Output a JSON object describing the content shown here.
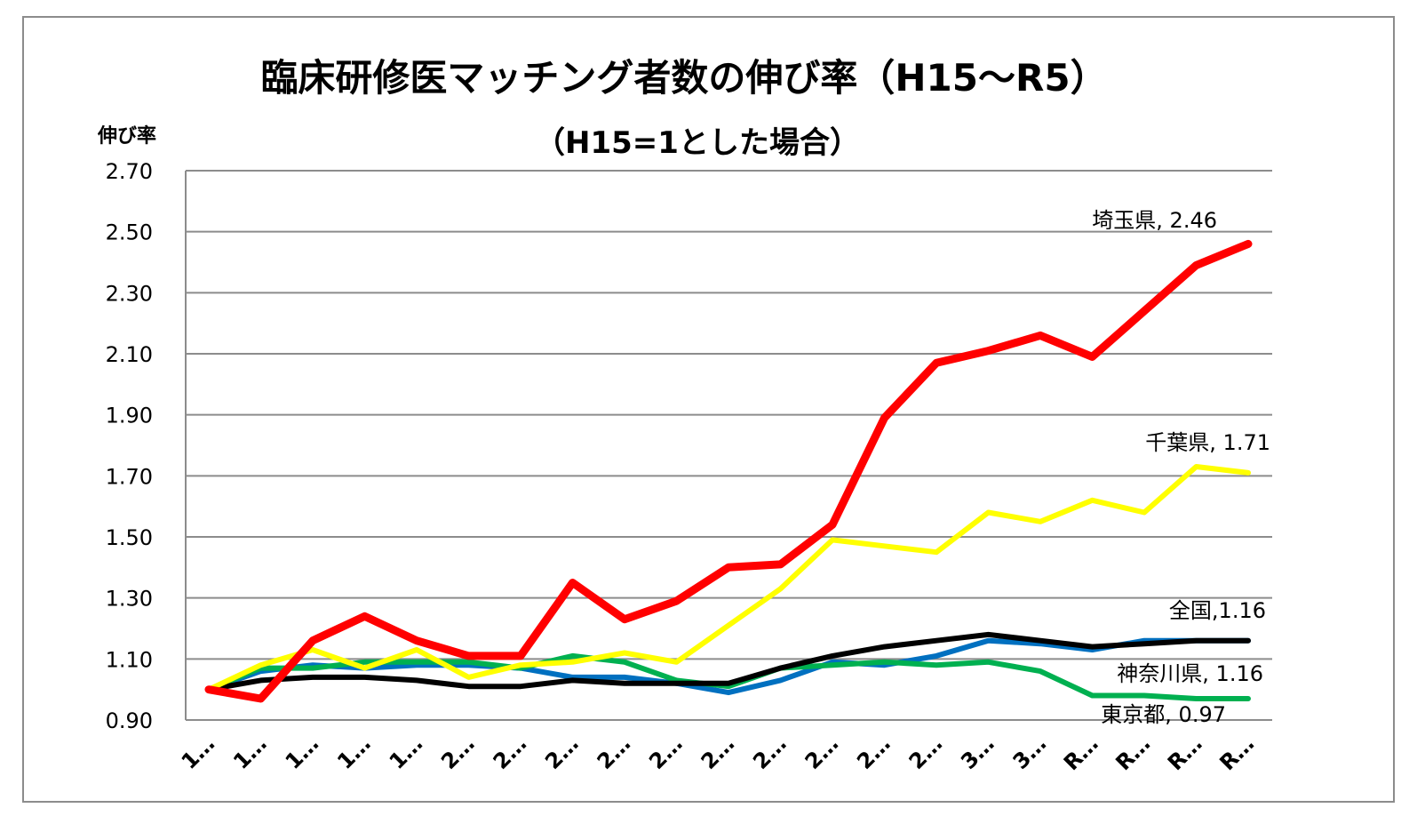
{
  "chart_data": {
    "type": "line",
    "title": "臨床研修医マッチング者数の伸び率（H15～R5）",
    "subtitle": "（H15=1とした場合）",
    "ylabel": "伸び率",
    "xlabel": "",
    "ylim": [
      0.9,
      2.7
    ],
    "yticks": [
      "0.90",
      "1.10",
      "1.30",
      "1.50",
      "1.70",
      "1.90",
      "2.10",
      "2.30",
      "2.50",
      "2.70"
    ],
    "ytick_values": [
      0.9,
      1.1,
      1.3,
      1.5,
      1.7,
      1.9,
      2.1,
      2.3,
      2.5,
      2.7
    ],
    "categories": [
      "1…",
      "1…",
      "1…",
      "1…",
      "1…",
      "2…",
      "2…",
      "2…",
      "2…",
      "2…",
      "2…",
      "2…",
      "2…",
      "2…",
      "2…",
      "3…",
      "3…",
      "R…",
      "R…",
      "R…",
      "R…"
    ],
    "grid": "horizontal",
    "legend": "none",
    "series": [
      {
        "name": "埼玉県",
        "color": "#ff0000",
        "label": "埼玉県, 2.46",
        "values": [
          1.0,
          0.97,
          1.16,
          1.24,
          1.16,
          1.11,
          1.11,
          1.35,
          1.23,
          1.29,
          1.4,
          1.41,
          1.54,
          1.89,
          2.07,
          2.11,
          2.16,
          2.09,
          2.24,
          2.39,
          2.46
        ]
      },
      {
        "name": "千葉県",
        "color": "#ffff00",
        "label": "千葉県, 1.71",
        "values": [
          1.0,
          1.08,
          1.13,
          1.07,
          1.13,
          1.04,
          1.08,
          1.09,
          1.12,
          1.09,
          1.21,
          1.33,
          1.49,
          1.47,
          1.45,
          1.58,
          1.55,
          1.62,
          1.58,
          1.73,
          1.71
        ]
      },
      {
        "name": "全国",
        "color": "#000000",
        "label": "全国,1.16",
        "values": [
          1.0,
          1.03,
          1.04,
          1.04,
          1.03,
          1.01,
          1.01,
          1.03,
          1.02,
          1.02,
          1.02,
          1.07,
          1.11,
          1.14,
          1.16,
          1.18,
          1.16,
          1.14,
          1.15,
          1.16,
          1.16
        ]
      },
      {
        "name": "神奈川県",
        "color": "#0070c0",
        "label": "神奈川県, 1.16",
        "values": [
          1.0,
          1.06,
          1.08,
          1.07,
          1.08,
          1.08,
          1.07,
          1.04,
          1.04,
          1.02,
          0.99,
          1.03,
          1.09,
          1.08,
          1.11,
          1.16,
          1.15,
          1.13,
          1.16,
          1.16,
          1.16
        ]
      },
      {
        "name": "東京都",
        "color": "#00b050",
        "label": "東京都, 0.97",
        "values": [
          1.0,
          1.07,
          1.07,
          1.09,
          1.09,
          1.09,
          1.07,
          1.11,
          1.09,
          1.03,
          1.01,
          1.07,
          1.08,
          1.09,
          1.08,
          1.09,
          1.06,
          0.98,
          0.98,
          0.97,
          0.97
        ]
      }
    ]
  }
}
